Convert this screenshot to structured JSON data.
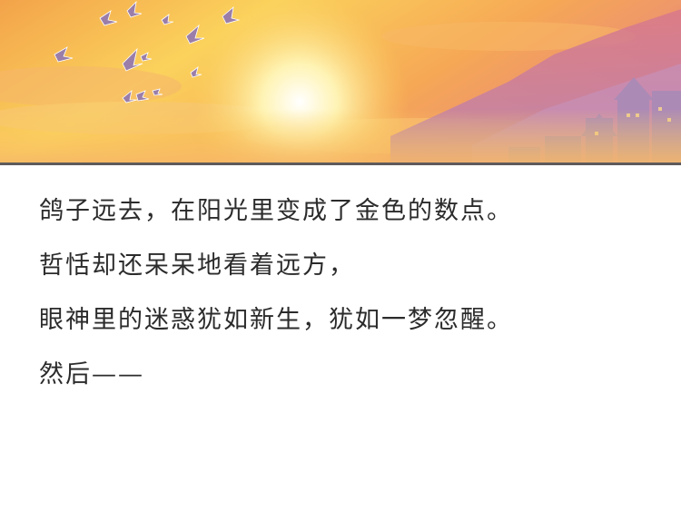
{
  "panel": {
    "scene": "sunset-sky-with-pigeons",
    "colors": {
      "sky_top": "#f7b44c",
      "sky_mid": "#fbd35e",
      "sun": "#fffbe0",
      "mountain": "#d67a8a",
      "town": "#b38cb8",
      "pigeons": "#9a7ea9"
    }
  },
  "narration": {
    "lines": [
      "鸽子远去，在阳光里变成了金色的数点。",
      "哲恬却还呆呆地看着远方，",
      "眼神里的迷惑犹如新生，犹如一梦忽醒。",
      "然后——"
    ]
  }
}
